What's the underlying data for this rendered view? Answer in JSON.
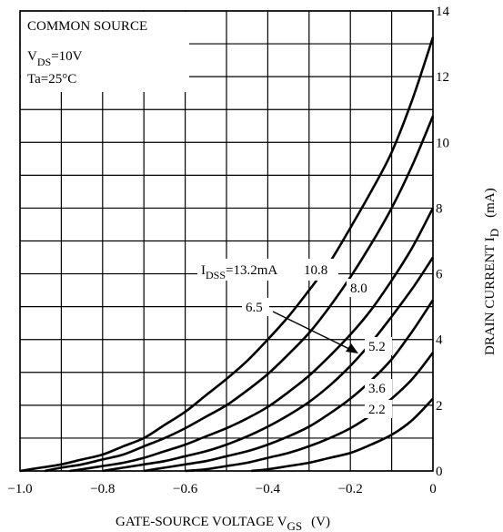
{
  "chart_data": {
    "type": "line",
    "x_label": {
      "main": "GATE-SOURCE VOLTAGE  V",
      "sub": "GS",
      "unit": "(V)"
    },
    "y_label": {
      "main": "DRAIN CURRENT  I",
      "sub": "D",
      "unit": "(mA)"
    },
    "conditions": [
      {
        "main": "COMMON SOURCE",
        "sub": "",
        "tail": ""
      },
      {
        "main": "V",
        "sub": "DS",
        "tail": "=10V"
      },
      {
        "main": "Ta=25°C",
        "sub": "",
        "tail": ""
      }
    ],
    "xlim": [
      -1.0,
      0
    ],
    "ylim": [
      0,
      14
    ],
    "x_ticks": [
      -1.0,
      -0.8,
      -0.6,
      -0.4,
      -0.2,
      0
    ],
    "x_tick_labels": [
      "−1.0",
      "−0.8",
      "−0.6",
      "−0.4",
      "−0.2",
      "0"
    ],
    "y_ticks": [
      0,
      2,
      4,
      6,
      8,
      10,
      12,
      14
    ],
    "y_tick_labels": [
      "0",
      "2",
      "4",
      "6",
      "8",
      "10",
      "12",
      "14"
    ],
    "grid": true,
    "legend_prefix": {
      "main": "I",
      "sub": "DSS",
      "tail": "=13.2mA"
    },
    "series": [
      {
        "name": "13.2mA",
        "points": [
          [
            -1.0,
            0
          ],
          [
            -0.95,
            0.1
          ],
          [
            -0.9,
            0.2
          ],
          [
            -0.85,
            0.35
          ],
          [
            -0.8,
            0.5
          ],
          [
            -0.75,
            0.75
          ],
          [
            -0.7,
            1.0
          ],
          [
            -0.65,
            1.4
          ],
          [
            -0.6,
            1.8
          ],
          [
            -0.55,
            2.3
          ],
          [
            -0.5,
            2.8
          ],
          [
            -0.45,
            3.35
          ],
          [
            -0.4,
            4.0
          ],
          [
            -0.35,
            4.7
          ],
          [
            -0.3,
            5.5
          ],
          [
            -0.25,
            6.35
          ],
          [
            -0.2,
            7.4
          ],
          [
            -0.15,
            8.5
          ],
          [
            -0.1,
            9.7
          ],
          [
            -0.05,
            11.3
          ],
          [
            0,
            13.2
          ]
        ]
      },
      {
        "name": "10.8",
        "points": [
          [
            -0.94,
            0
          ],
          [
            -0.9,
            0.1
          ],
          [
            -0.85,
            0.2
          ],
          [
            -0.8,
            0.35
          ],
          [
            -0.75,
            0.5
          ],
          [
            -0.7,
            0.75
          ],
          [
            -0.65,
            1.0
          ],
          [
            -0.6,
            1.3
          ],
          [
            -0.55,
            1.65
          ],
          [
            -0.5,
            2.0
          ],
          [
            -0.45,
            2.45
          ],
          [
            -0.4,
            2.95
          ],
          [
            -0.35,
            3.55
          ],
          [
            -0.3,
            4.2
          ],
          [
            -0.25,
            5.0
          ],
          [
            -0.2,
            5.9
          ],
          [
            -0.15,
            6.9
          ],
          [
            -0.1,
            8.0
          ],
          [
            -0.05,
            9.3
          ],
          [
            0,
            10.8
          ]
        ]
      },
      {
        "name": "8.0",
        "points": [
          [
            -0.88,
            0
          ],
          [
            -0.85,
            0.05
          ],
          [
            -0.8,
            0.15
          ],
          [
            -0.75,
            0.25
          ],
          [
            -0.7,
            0.4
          ],
          [
            -0.65,
            0.6
          ],
          [
            -0.6,
            0.8
          ],
          [
            -0.55,
            1.05
          ],
          [
            -0.5,
            1.3
          ],
          [
            -0.45,
            1.6
          ],
          [
            -0.4,
            1.95
          ],
          [
            -0.35,
            2.4
          ],
          [
            -0.3,
            2.9
          ],
          [
            -0.25,
            3.5
          ],
          [
            -0.2,
            4.15
          ],
          [
            -0.15,
            4.9
          ],
          [
            -0.1,
            5.8
          ],
          [
            -0.05,
            6.8
          ],
          [
            0,
            8.0
          ]
        ]
      },
      {
        "name": "6.5",
        "points": [
          [
            -0.8,
            0
          ],
          [
            -0.75,
            0.1
          ],
          [
            -0.7,
            0.2
          ],
          [
            -0.65,
            0.3
          ],
          [
            -0.6,
            0.45
          ],
          [
            -0.55,
            0.6
          ],
          [
            -0.5,
            0.8
          ],
          [
            -0.45,
            1.05
          ],
          [
            -0.4,
            1.35
          ],
          [
            -0.35,
            1.7
          ],
          [
            -0.3,
            2.1
          ],
          [
            -0.25,
            2.6
          ],
          [
            -0.2,
            3.2
          ],
          [
            -0.15,
            3.9
          ],
          [
            -0.1,
            4.7
          ],
          [
            -0.05,
            5.55
          ],
          [
            0,
            6.5
          ]
        ]
      },
      {
        "name": "5.2",
        "points": [
          [
            -0.7,
            0
          ],
          [
            -0.65,
            0.1
          ],
          [
            -0.6,
            0.2
          ],
          [
            -0.55,
            0.3
          ],
          [
            -0.5,
            0.45
          ],
          [
            -0.45,
            0.6
          ],
          [
            -0.4,
            0.8
          ],
          [
            -0.35,
            1.05
          ],
          [
            -0.3,
            1.35
          ],
          [
            -0.25,
            1.75
          ],
          [
            -0.2,
            2.2
          ],
          [
            -0.15,
            2.75
          ],
          [
            -0.1,
            3.4
          ],
          [
            -0.05,
            4.25
          ],
          [
            0,
            5.2
          ]
        ]
      },
      {
        "name": "3.6",
        "points": [
          [
            -0.6,
            0
          ],
          [
            -0.55,
            0.05
          ],
          [
            -0.5,
            0.15
          ],
          [
            -0.45,
            0.25
          ],
          [
            -0.4,
            0.4
          ],
          [
            -0.35,
            0.55
          ],
          [
            -0.3,
            0.75
          ],
          [
            -0.25,
            1.0
          ],
          [
            -0.2,
            1.3
          ],
          [
            -0.15,
            1.7
          ],
          [
            -0.1,
            2.2
          ],
          [
            -0.05,
            2.8
          ],
          [
            0,
            3.6
          ]
        ]
      },
      {
        "name": "2.2",
        "points": [
          [
            -0.44,
            0
          ],
          [
            -0.4,
            0.05
          ],
          [
            -0.35,
            0.15
          ],
          [
            -0.3,
            0.25
          ],
          [
            -0.25,
            0.4
          ],
          [
            -0.2,
            0.55
          ],
          [
            -0.15,
            0.8
          ],
          [
            -0.1,
            1.1
          ],
          [
            -0.05,
            1.55
          ],
          [
            0,
            2.2
          ]
        ]
      }
    ],
    "labels": [
      "10.8",
      "8.0",
      "6.5",
      "5.2",
      "3.6",
      "2.2"
    ]
  }
}
